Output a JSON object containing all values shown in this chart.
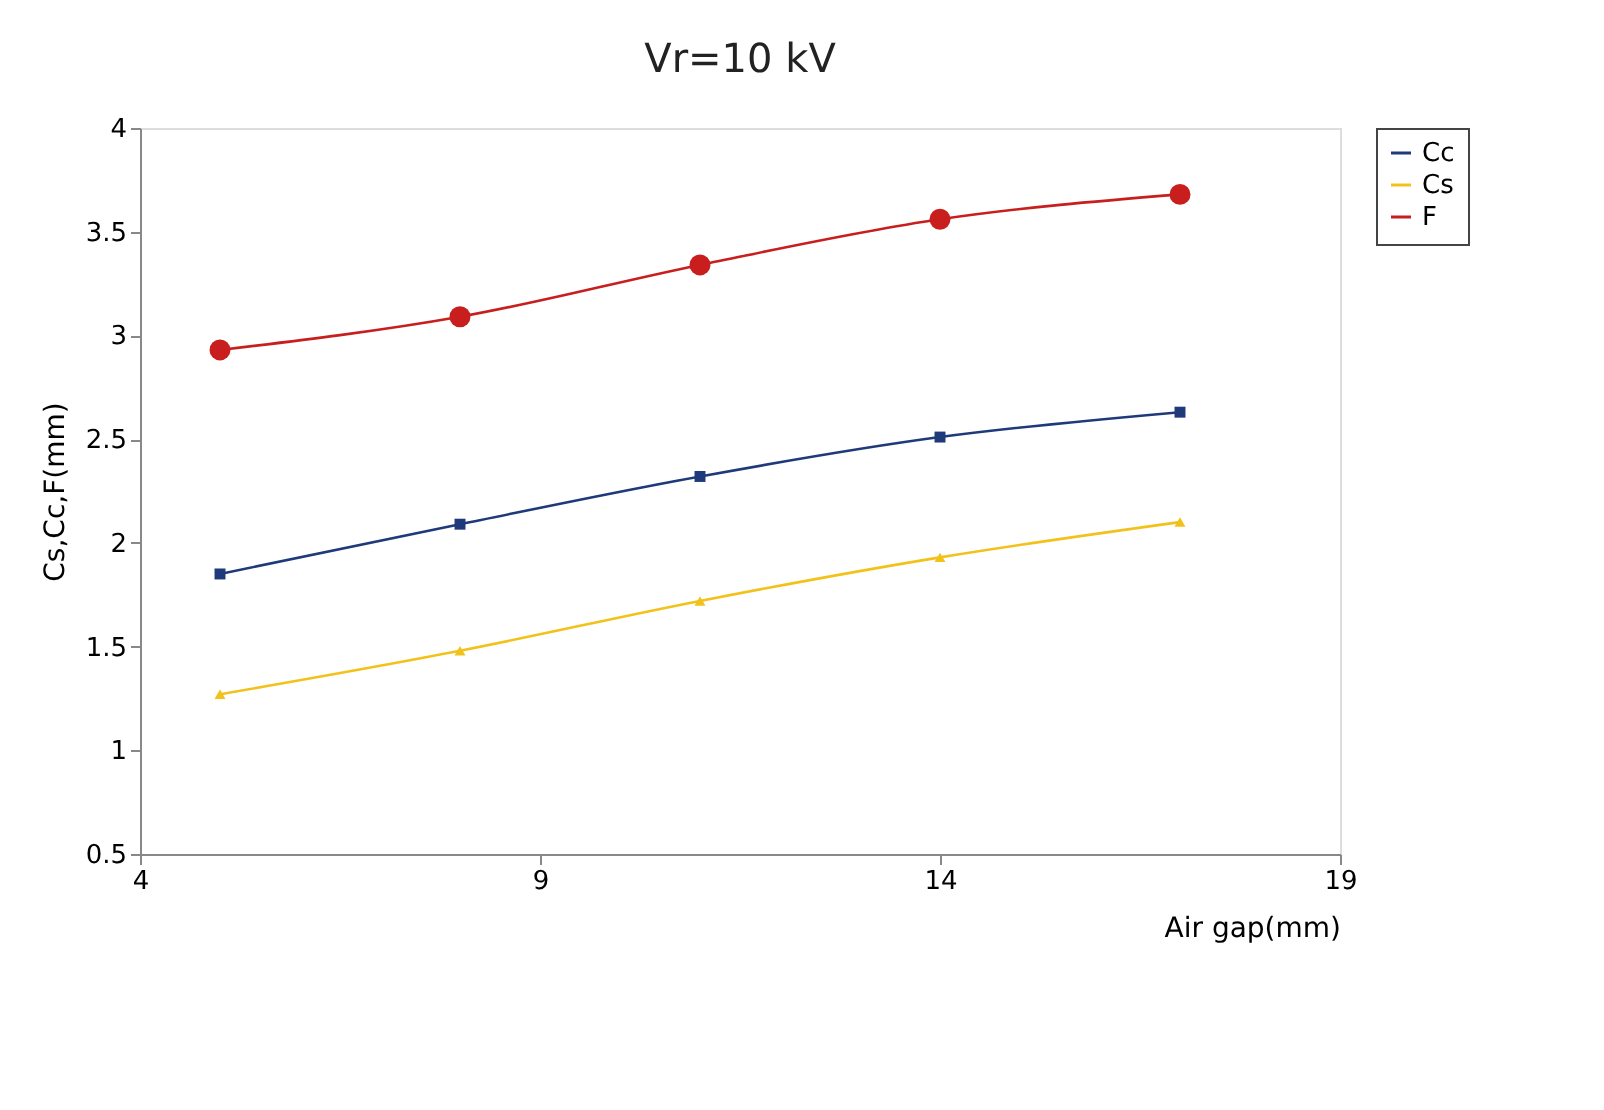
{
  "chart_data": {
    "type": "line",
    "title": "Vr=10 kV",
    "xlabel": "Air gap(mm)",
    "ylabel": "Cs,Cc,F(mm)",
    "x": [
      5,
      8,
      11,
      14,
      17
    ],
    "series": [
      {
        "name": "Cc",
        "color": "#1f3a7a",
        "marker": "square",
        "values": [
          1.85,
          2.09,
          2.32,
          2.51,
          2.63
        ]
      },
      {
        "name": "Cs",
        "color": "#f2c21b",
        "marker": "triangle",
        "values": [
          1.27,
          1.48,
          1.72,
          1.93,
          2.1
        ]
      },
      {
        "name": "F",
        "color": "#c81e1e",
        "marker": "circle",
        "values": [
          2.93,
          3.09,
          3.34,
          3.56,
          3.68
        ]
      }
    ],
    "xlim": [
      4,
      19
    ],
    "xticks": [
      4,
      9,
      14,
      19
    ],
    "ylim": [
      0.5,
      4
    ],
    "yticks": [
      0.5,
      1,
      1.5,
      2,
      2.5,
      3,
      3.5,
      4
    ],
    "grid": false,
    "legend": "right",
    "line_style": "solid"
  }
}
